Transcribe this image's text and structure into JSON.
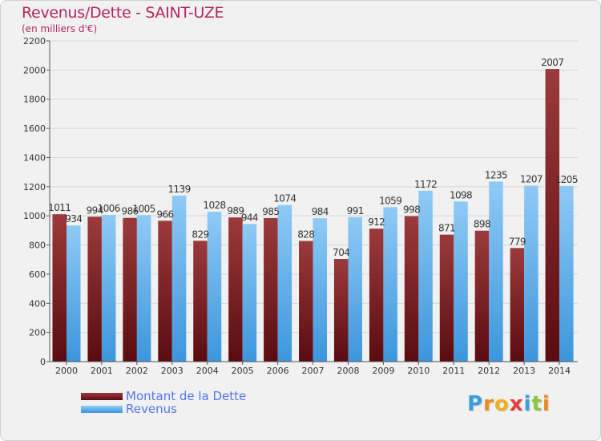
{
  "header": {
    "title": "Revenus/Dette - SAINT-UZE",
    "subtitle": "(en milliers d'€)"
  },
  "legend": {
    "dette_label": "Montant de la Dette",
    "revenus_label": "Revenus"
  },
  "logo": {
    "text": "Proxiti",
    "letters": [
      "P",
      "r",
      "o",
      "x",
      "i",
      "t",
      "i"
    ],
    "colors": [
      "#3aa0dd",
      "#f08a1c",
      "#f0b020",
      "#e83a3a",
      "#3aa0dd",
      "#8dc63f",
      "#f08a1c"
    ]
  },
  "colors": {
    "dette_top": "#9b3a3c",
    "dette_bottom": "#5a0c10",
    "revenus_top": "#8fcaf5",
    "revenus_bottom": "#3c96dd",
    "title": "#b5265f",
    "legend_text": "#5577ee"
  },
  "chart_data": {
    "type": "bar",
    "title": "Revenus/Dette - SAINT-UZE",
    "subtitle": "(en milliers d'€)",
    "categories": [
      "2000",
      "2001",
      "2002",
      "2003",
      "2004",
      "2005",
      "2006",
      "2007",
      "2008",
      "2009",
      "2010",
      "2011",
      "2012",
      "2013",
      "2014"
    ],
    "series": [
      {
        "name": "Montant de la Dette",
        "values": [
          1011,
          994,
          986,
          966,
          829,
          989,
          985,
          828,
          704,
          912,
          998,
          871,
          898,
          779,
          2007
        ]
      },
      {
        "name": "Revenus",
        "values": [
          934,
          1006,
          1005,
          1139,
          1028,
          944,
          1074,
          984,
          991,
          1059,
          1172,
          1098,
          1235,
          1207,
          1205
        ]
      }
    ],
    "ylim": [
      0,
      2200
    ],
    "yticks": [
      0,
      200,
      400,
      600,
      800,
      1000,
      1200,
      1400,
      1600,
      1800,
      2000,
      2200
    ],
    "grid": true,
    "legend_position": "bottom-left"
  }
}
